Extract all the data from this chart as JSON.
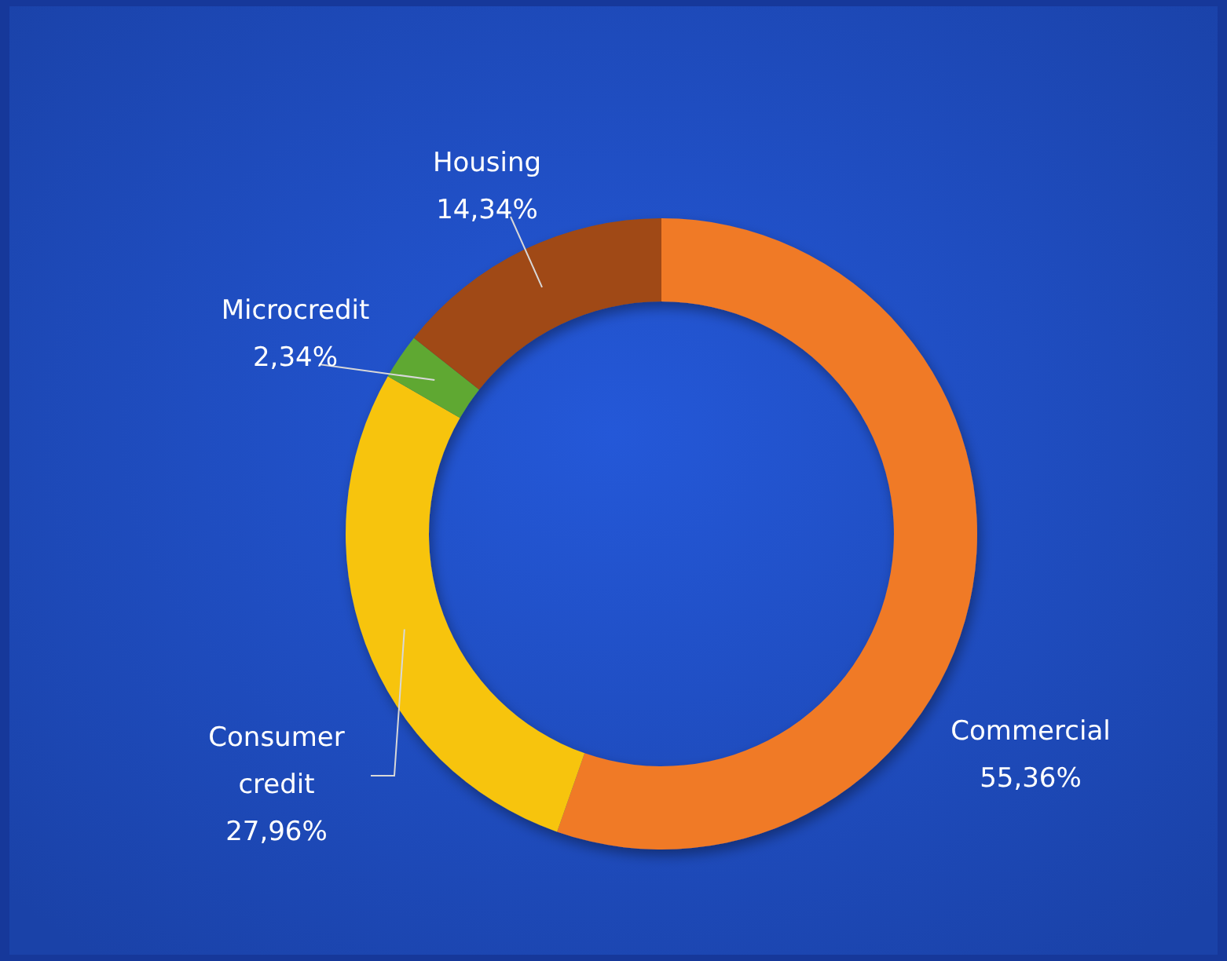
{
  "chart_data": {
    "type": "donut",
    "categories": [
      "Commercial",
      "Consumer credit",
      "Microcredit",
      "Housing"
    ],
    "values": [
      55.36,
      27.96,
      2.34,
      14.34
    ],
    "colors": [
      "#f07a28",
      "#f7c410",
      "#5ea832",
      "#a04a12"
    ],
    "value_labels": [
      "55,36%",
      "27,96%",
      "2,34%",
      "14,34%"
    ]
  }
}
